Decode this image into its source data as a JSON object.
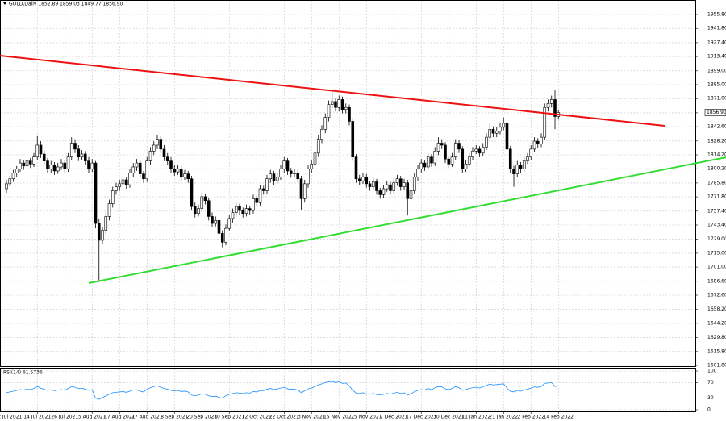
{
  "chart_data": {
    "type": "candlestick",
    "title": "GOLD,Daily  1852.89 1859.03 1849.77 1856.90",
    "last_price": {
      "value": 1856.9,
      "label": "1856.90"
    },
    "colors": {
      "up": "#ffffff",
      "down": "#000000",
      "outline": "#000000"
    },
    "grid": true,
    "ylim": [
      1601.8,
      1955.8
    ],
    "yticks": [
      {
        "value": 1955.8,
        "label": "1955.80"
      },
      {
        "value": 1941.8,
        "label": "1941.80"
      },
      {
        "value": 1927.4,
        "label": "1927.40"
      },
      {
        "value": 1913.4,
        "label": "1913.40"
      },
      {
        "value": 1899,
        "label": "1899.00"
      },
      {
        "value": 1885,
        "label": "1885.00"
      },
      {
        "value": 1871,
        "label": "1871.00"
      },
      {
        "value": 1856.6,
        "label": "1856.60"
      },
      {
        "value": 1842.6,
        "label": "1842.60"
      },
      {
        "value": 1828.2,
        "label": "1828.20"
      },
      {
        "value": 1814.2,
        "label": "1814.20"
      },
      {
        "value": 1800.2,
        "label": "1800.20"
      },
      {
        "value": 1785.8,
        "label": "1785.80"
      },
      {
        "value": 1771.8,
        "label": "1771.80"
      },
      {
        "value": 1757.4,
        "label": "1757.40"
      },
      {
        "value": 1743.4,
        "label": "1743.40"
      },
      {
        "value": 1729,
        "label": "1729.00"
      },
      {
        "value": 1715,
        "label": "1715.00"
      },
      {
        "value": 1701,
        "label": "1701.00"
      },
      {
        "value": 1686.6,
        "label": "1686.60"
      },
      {
        "value": 1672.6,
        "label": "1672.60"
      },
      {
        "value": 1658.2,
        "label": "1658.20"
      },
      {
        "value": 1644.2,
        "label": "1644.20"
      },
      {
        "value": 1629.8,
        "label": "1629.80"
      },
      {
        "value": 1615.8,
        "label": "1615.80"
      },
      {
        "value": 1601.8,
        "label": "1601.80"
      }
    ],
    "xticks": [
      {
        "value": 1,
        "label": "2 Jul 2021"
      },
      {
        "value": 9,
        "label": "14 Jul 2021"
      },
      {
        "value": 17,
        "label": "26 Jul 2021"
      },
      {
        "value": 25,
        "label": "5 Aug 2021"
      },
      {
        "value": 33,
        "label": "17 Aug 2021"
      },
      {
        "value": 41,
        "label": "27 Aug 2021"
      },
      {
        "value": 49,
        "label": "8 Sep 2021"
      },
      {
        "value": 57,
        "label": "20 Sep 2021"
      },
      {
        "value": 65,
        "label": "30 Sep 2021"
      },
      {
        "value": 73,
        "label": "12 Oct 2021"
      },
      {
        "value": 81,
        "label": "22 Oct 2021"
      },
      {
        "value": 89,
        "label": "3 Nov 2021"
      },
      {
        "value": 97,
        "label": "15 Nov 2021"
      },
      {
        "value": 105,
        "label": "25 Nov 2021"
      },
      {
        "value": 113,
        "label": "7 Dec 2021"
      },
      {
        "value": 121,
        "label": "17 Dec 2021"
      },
      {
        "value": 129,
        "label": "30 Dec 2021"
      },
      {
        "value": 137,
        "label": "11 Jan 2022"
      },
      {
        "value": 145,
        "label": "21 Jan 2022"
      },
      {
        "value": 153,
        "label": "2 Feb 2022"
      },
      {
        "value": 161,
        "label": "14 Feb 2022"
      }
    ],
    "candles": [
      [
        1780,
        1789,
        1776,
        1785
      ],
      [
        1785,
        1793,
        1782,
        1790
      ],
      [
        1790,
        1799,
        1787,
        1796
      ],
      [
        1796,
        1803,
        1792,
        1800
      ],
      [
        1800,
        1810,
        1797,
        1806
      ],
      [
        1806,
        1809,
        1799,
        1803
      ],
      [
        1803,
        1812,
        1800,
        1808
      ],
      [
        1808,
        1811,
        1801,
        1805
      ],
      [
        1805,
        1816,
        1802,
        1812
      ],
      [
        1812,
        1833,
        1809,
        1824
      ],
      [
        1824,
        1828,
        1811,
        1815
      ],
      [
        1815,
        1819,
        1804,
        1808
      ],
      [
        1808,
        1811,
        1796,
        1800
      ],
      [
        1800,
        1808,
        1796,
        1804
      ],
      [
        1804,
        1807,
        1794,
        1798
      ],
      [
        1798,
        1806,
        1795,
        1802
      ],
      [
        1802,
        1810,
        1799,
        1806
      ],
      [
        1806,
        1809,
        1796,
        1800
      ],
      [
        1800,
        1816,
        1797,
        1812
      ],
      [
        1812,
        1832,
        1809,
        1826
      ],
      [
        1826,
        1830,
        1816,
        1820
      ],
      [
        1820,
        1824,
        1808,
        1812
      ],
      [
        1812,
        1819,
        1809,
        1815
      ],
      [
        1815,
        1818,
        1804,
        1808
      ],
      [
        1808,
        1812,
        1796,
        1800
      ],
      [
        1800,
        1810,
        1797,
        1806
      ],
      [
        1806,
        1808,
        1740,
        1745
      ],
      [
        1745,
        1750,
        1687,
        1728
      ],
      [
        1728,
        1742,
        1724,
        1738
      ],
      [
        1738,
        1756,
        1734,
        1752
      ],
      [
        1752,
        1769,
        1748,
        1765
      ],
      [
        1765,
        1782,
        1761,
        1778
      ],
      [
        1778,
        1786,
        1774,
        1782
      ],
      [
        1782,
        1789,
        1778,
        1785
      ],
      [
        1785,
        1793,
        1781,
        1789
      ],
      [
        1789,
        1792,
        1780,
        1784
      ],
      [
        1784,
        1800,
        1781,
        1796
      ],
      [
        1796,
        1806,
        1792,
        1802
      ],
      [
        1802,
        1810,
        1798,
        1806
      ],
      [
        1806,
        1809,
        1791,
        1795
      ],
      [
        1795,
        1798,
        1786,
        1790
      ],
      [
        1790,
        1812,
        1787,
        1808
      ],
      [
        1808,
        1822,
        1804,
        1818
      ],
      [
        1818,
        1828,
        1814,
        1824
      ],
      [
        1824,
        1834,
        1820,
        1830
      ],
      [
        1830,
        1833,
        1816,
        1820
      ],
      [
        1820,
        1824,
        1808,
        1812
      ],
      [
        1812,
        1816,
        1804,
        1808
      ],
      [
        1808,
        1812,
        1796,
        1800
      ],
      [
        1800,
        1804,
        1793,
        1797
      ],
      [
        1797,
        1804,
        1794,
        1800
      ],
      [
        1800,
        1803,
        1788,
        1792
      ],
      [
        1792,
        1799,
        1789,
        1795
      ],
      [
        1795,
        1798,
        1786,
        1790
      ],
      [
        1790,
        1793,
        1758,
        1762
      ],
      [
        1762,
        1766,
        1751,
        1755
      ],
      [
        1755,
        1764,
        1752,
        1760
      ],
      [
        1760,
        1776,
        1757,
        1772
      ],
      [
        1772,
        1775,
        1764,
        1768
      ],
      [
        1768,
        1771,
        1748,
        1752
      ],
      [
        1752,
        1756,
        1741,
        1745
      ],
      [
        1745,
        1752,
        1742,
        1748
      ],
      [
        1748,
        1751,
        1731,
        1735
      ],
      [
        1735,
        1738,
        1721,
        1726
      ],
      [
        1726,
        1744,
        1723,
        1740
      ],
      [
        1740,
        1754,
        1737,
        1750
      ],
      [
        1750,
        1760,
        1746,
        1756
      ],
      [
        1756,
        1766,
        1752,
        1762
      ],
      [
        1762,
        1765,
        1754,
        1758
      ],
      [
        1758,
        1761,
        1751,
        1755
      ],
      [
        1755,
        1764,
        1752,
        1760
      ],
      [
        1760,
        1763,
        1754,
        1758
      ],
      [
        1758,
        1774,
        1755,
        1770
      ],
      [
        1770,
        1773,
        1762,
        1766
      ],
      [
        1766,
        1784,
        1763,
        1780
      ],
      [
        1780,
        1783,
        1774,
        1778
      ],
      [
        1778,
        1794,
        1775,
        1790
      ],
      [
        1790,
        1799,
        1786,
        1795
      ],
      [
        1795,
        1798,
        1784,
        1788
      ],
      [
        1788,
        1796,
        1785,
        1792
      ],
      [
        1792,
        1804,
        1789,
        1800
      ],
      [
        1800,
        1812,
        1796,
        1808
      ],
      [
        1808,
        1811,
        1794,
        1798
      ],
      [
        1798,
        1801,
        1791,
        1795
      ],
      [
        1795,
        1800,
        1792,
        1796
      ],
      [
        1796,
        1799,
        1786,
        1790
      ],
      [
        1790,
        1793,
        1758,
        1770
      ],
      [
        1770,
        1789,
        1766,
        1785
      ],
      [
        1785,
        1804,
        1781,
        1800
      ],
      [
        1800,
        1809,
        1796,
        1805
      ],
      [
        1805,
        1820,
        1801,
        1816
      ],
      [
        1816,
        1834,
        1812,
        1830
      ],
      [
        1830,
        1844,
        1826,
        1840
      ],
      [
        1840,
        1856,
        1836,
        1852
      ],
      [
        1852,
        1869,
        1848,
        1865
      ],
      [
        1865,
        1877,
        1861,
        1868
      ],
      [
        1868,
        1871,
        1858,
        1862
      ],
      [
        1862,
        1874,
        1858,
        1870
      ],
      [
        1870,
        1873,
        1856,
        1860
      ],
      [
        1860,
        1866,
        1856,
        1862
      ],
      [
        1862,
        1865,
        1844,
        1848
      ],
      [
        1848,
        1851,
        1808,
        1812
      ],
      [
        1812,
        1815,
        1786,
        1790
      ],
      [
        1790,
        1794,
        1784,
        1788
      ],
      [
        1788,
        1796,
        1785,
        1792
      ],
      [
        1792,
        1795,
        1781,
        1785
      ],
      [
        1785,
        1788,
        1778,
        1782
      ],
      [
        1782,
        1791,
        1779,
        1787
      ],
      [
        1787,
        1790,
        1774,
        1778
      ],
      [
        1778,
        1781,
        1770,
        1774
      ],
      [
        1774,
        1784,
        1771,
        1780
      ],
      [
        1780,
        1788,
        1777,
        1784
      ],
      [
        1784,
        1787,
        1774,
        1778
      ],
      [
        1778,
        1790,
        1775,
        1786
      ],
      [
        1786,
        1794,
        1783,
        1790
      ],
      [
        1790,
        1793,
        1778,
        1782
      ],
      [
        1782,
        1790,
        1779,
        1786
      ],
      [
        1786,
        1789,
        1753,
        1770
      ],
      [
        1770,
        1782,
        1767,
        1778
      ],
      [
        1778,
        1796,
        1775,
        1792
      ],
      [
        1792,
        1804,
        1788,
        1800
      ],
      [
        1800,
        1810,
        1796,
        1806
      ],
      [
        1806,
        1809,
        1798,
        1802
      ],
      [
        1802,
        1816,
        1799,
        1812
      ],
      [
        1812,
        1815,
        1802,
        1806
      ],
      [
        1806,
        1822,
        1803,
        1818
      ],
      [
        1818,
        1832,
        1814,
        1826
      ],
      [
        1826,
        1830,
        1820,
        1824
      ],
      [
        1824,
        1827,
        1806,
        1810
      ],
      [
        1810,
        1813,
        1801,
        1805
      ],
      [
        1805,
        1816,
        1802,
        1812
      ],
      [
        1812,
        1830,
        1809,
        1826
      ],
      [
        1826,
        1829,
        1816,
        1820
      ],
      [
        1820,
        1823,
        1796,
        1800
      ],
      [
        1800,
        1809,
        1797,
        1805
      ],
      [
        1805,
        1816,
        1802,
        1812
      ],
      [
        1812,
        1822,
        1809,
        1818
      ],
      [
        1818,
        1824,
        1815,
        1820
      ],
      [
        1820,
        1823,
        1812,
        1816
      ],
      [
        1816,
        1826,
        1813,
        1822
      ],
      [
        1822,
        1836,
        1819,
        1832
      ],
      [
        1832,
        1846,
        1829,
        1840
      ],
      [
        1840,
        1843,
        1832,
        1836
      ],
      [
        1836,
        1842,
        1832,
        1838
      ],
      [
        1838,
        1847,
        1835,
        1842
      ],
      [
        1842,
        1852,
        1839,
        1846
      ],
      [
        1846,
        1849,
        1816,
        1820
      ],
      [
        1820,
        1823,
        1796,
        1800
      ],
      [
        1800,
        1803,
        1782,
        1795
      ],
      [
        1795,
        1808,
        1792,
        1804
      ],
      [
        1804,
        1807,
        1796,
        1800
      ],
      [
        1800,
        1812,
        1797,
        1808
      ],
      [
        1808,
        1816,
        1805,
        1812
      ],
      [
        1812,
        1824,
        1809,
        1820
      ],
      [
        1820,
        1832,
        1817,
        1828
      ],
      [
        1828,
        1831,
        1821,
        1825
      ],
      [
        1825,
        1836,
        1822,
        1832
      ],
      [
        1832,
        1866,
        1829,
        1862
      ],
      [
        1862,
        1870,
        1858,
        1866
      ],
      [
        1866,
        1874,
        1862,
        1870
      ],
      [
        1870,
        1880,
        1840,
        1852.89
      ],
      [
        1852.89,
        1859.03,
        1849.77,
        1856.9
      ]
    ],
    "trendlines": [
      {
        "color": "#ee1111",
        "start": [
          -2,
          1914.3
        ],
        "end": [
          192,
          1843.5
        ]
      },
      {
        "color": "#33dd33",
        "start": [
          24,
          1684.8
        ],
        "end": [
          210,
          1811.8
        ]
      }
    ],
    "rsi": {
      "title": "RSI(14) 61.5736",
      "color": "#1e90ff",
      "ylim": [
        0,
        100
      ],
      "yticks": [
        100,
        70,
        30,
        0
      ],
      "values": [
        44,
        46,
        48,
        50,
        52,
        51,
        53,
        52,
        55,
        60,
        56,
        53,
        50,
        52,
        49,
        51,
        52,
        50,
        55,
        60,
        58,
        55,
        56,
        53,
        50,
        52,
        30,
        27,
        31,
        36,
        40,
        44,
        45,
        46,
        47,
        45,
        48,
        51,
        52,
        48,
        46,
        53,
        57,
        60,
        62,
        58,
        55,
        53,
        50,
        49,
        50,
        47,
        48,
        46,
        38,
        36,
        38,
        41,
        40,
        36,
        34,
        35,
        32,
        30,
        36,
        40,
        42,
        44,
        43,
        42,
        44,
        43,
        47,
        46,
        50,
        49,
        53,
        55,
        52,
        54,
        56,
        58,
        54,
        53,
        53,
        51,
        44,
        49,
        54,
        56,
        60,
        64,
        67,
        70,
        72,
        73,
        70,
        72,
        68,
        69,
        62,
        50,
        43,
        42,
        44,
        41,
        40,
        42,
        39,
        38,
        40,
        42,
        40,
        43,
        45,
        42,
        44,
        38,
        41,
        47,
        50,
        52,
        51,
        55,
        52,
        57,
        60,
        59,
        54,
        52,
        55,
        60,
        57,
        50,
        52,
        55,
        57,
        58,
        56,
        59,
        63,
        66,
        64,
        65,
        66,
        67,
        56,
        48,
        46,
        50,
        48,
        51,
        53,
        56,
        59,
        58,
        60,
        68,
        69,
        70,
        60,
        61.5736
      ]
    }
  }
}
